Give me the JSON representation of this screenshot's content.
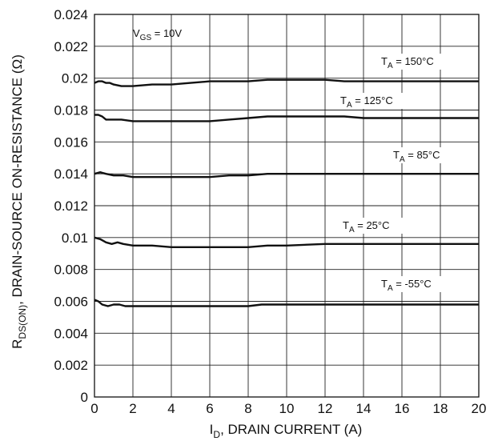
{
  "chart_data": {
    "type": "line",
    "xlabel": {
      "main": "I",
      "sub": "D",
      "rest": ", DRAIN CURRENT (A)"
    },
    "ylabel": {
      "main": "R",
      "sub": "DS(ON)",
      "rest": ", DRAIN-SOURCE ON-RESISTANCE (Ω)"
    },
    "xlim": [
      0,
      20
    ],
    "ylim": [
      0,
      0.024
    ],
    "xticks": [
      "0",
      "2",
      "4",
      "6",
      "8",
      "10",
      "12",
      "14",
      "16",
      "18",
      "20"
    ],
    "yticks": [
      "0",
      "0.002",
      "0.004",
      "0.006",
      "0.008",
      "0.01",
      "0.012",
      "0.014",
      "0.016",
      "0.018",
      "0.02",
      "0.022",
      "0.024"
    ],
    "grid": true,
    "condition": {
      "main": "V",
      "sub": "GS",
      "rest": " = 10V"
    },
    "series": [
      {
        "name": "T_A = 150°C",
        "label": {
          "main": "T",
          "sub": "A",
          "rest": " = 150°C"
        },
        "x": [
          0,
          0.2,
          0.4,
          0.6,
          0.8,
          1.0,
          1.4,
          2.0,
          3.0,
          4.0,
          5.0,
          6.0,
          7.0,
          8.0,
          9.0,
          10.0,
          11.0,
          12.0,
          13.0,
          14.0,
          16.0,
          18.0,
          20.0
        ],
        "y": [
          0.0197,
          0.0198,
          0.0198,
          0.0197,
          0.0197,
          0.0196,
          0.0195,
          0.0195,
          0.0196,
          0.0196,
          0.0197,
          0.0198,
          0.0198,
          0.0198,
          0.0199,
          0.0199,
          0.0199,
          0.0199,
          0.0198,
          0.0198,
          0.0198,
          0.0198,
          0.0198
        ]
      },
      {
        "name": "T_A = 125°C",
        "label": {
          "main": "T",
          "sub": "A",
          "rest": " = 125°C"
        },
        "x": [
          0,
          0.2,
          0.4,
          0.6,
          0.8,
          1.0,
          1.4,
          2.0,
          4.0,
          6.0,
          7.0,
          8.0,
          9.0,
          10.0,
          11.0,
          12.0,
          13.0,
          14.0,
          16.0,
          18.0,
          20.0
        ],
        "y": [
          0.0177,
          0.0177,
          0.0176,
          0.0174,
          0.0174,
          0.0174,
          0.0174,
          0.0173,
          0.0173,
          0.0173,
          0.0174,
          0.0175,
          0.0176,
          0.0176,
          0.0176,
          0.0176,
          0.0176,
          0.0175,
          0.0175,
          0.0175,
          0.0175
        ]
      },
      {
        "name": "T_A = 85°C",
        "label": {
          "main": "T",
          "sub": "A",
          "rest": " = 85°C"
        },
        "x": [
          0,
          0.3,
          0.6,
          1.0,
          1.5,
          2.0,
          4.0,
          6.0,
          7.0,
          8.0,
          9.0,
          12.0,
          16.0,
          20.0
        ],
        "y": [
          0.014,
          0.0141,
          0.014,
          0.0139,
          0.0139,
          0.0138,
          0.0138,
          0.0138,
          0.0139,
          0.0139,
          0.014,
          0.014,
          0.014,
          0.014
        ]
      },
      {
        "name": "T_A = 25°C",
        "label": {
          "main": "T",
          "sub": "A",
          "rest": " = 25°C"
        },
        "x": [
          0,
          0.3,
          0.6,
          0.9,
          1.2,
          1.5,
          2.0,
          3.0,
          4.0,
          6.0,
          8.0,
          9.0,
          10.0,
          12.0,
          14.0,
          16.0,
          20.0
        ],
        "y": [
          0.01,
          0.0099,
          0.0097,
          0.0096,
          0.0097,
          0.0096,
          0.0095,
          0.0095,
          0.0094,
          0.0094,
          0.0094,
          0.0095,
          0.0095,
          0.0096,
          0.0096,
          0.0096,
          0.0096
        ]
      },
      {
        "name": "T_A = -55°C",
        "label": {
          "main": "T",
          "sub": "A",
          "rest": " = -55°C"
        },
        "x": [
          0,
          0.2,
          0.4,
          0.7,
          1.0,
          1.3,
          1.6,
          2.0,
          4.0,
          6.0,
          8.0,
          8.7,
          9.0,
          12.0,
          16.0,
          20.0
        ],
        "y": [
          0.0061,
          0.006,
          0.0058,
          0.0057,
          0.0058,
          0.0058,
          0.0057,
          0.0057,
          0.0057,
          0.0057,
          0.0057,
          0.0058,
          0.0058,
          0.0058,
          0.0058,
          0.0058
        ]
      }
    ]
  }
}
